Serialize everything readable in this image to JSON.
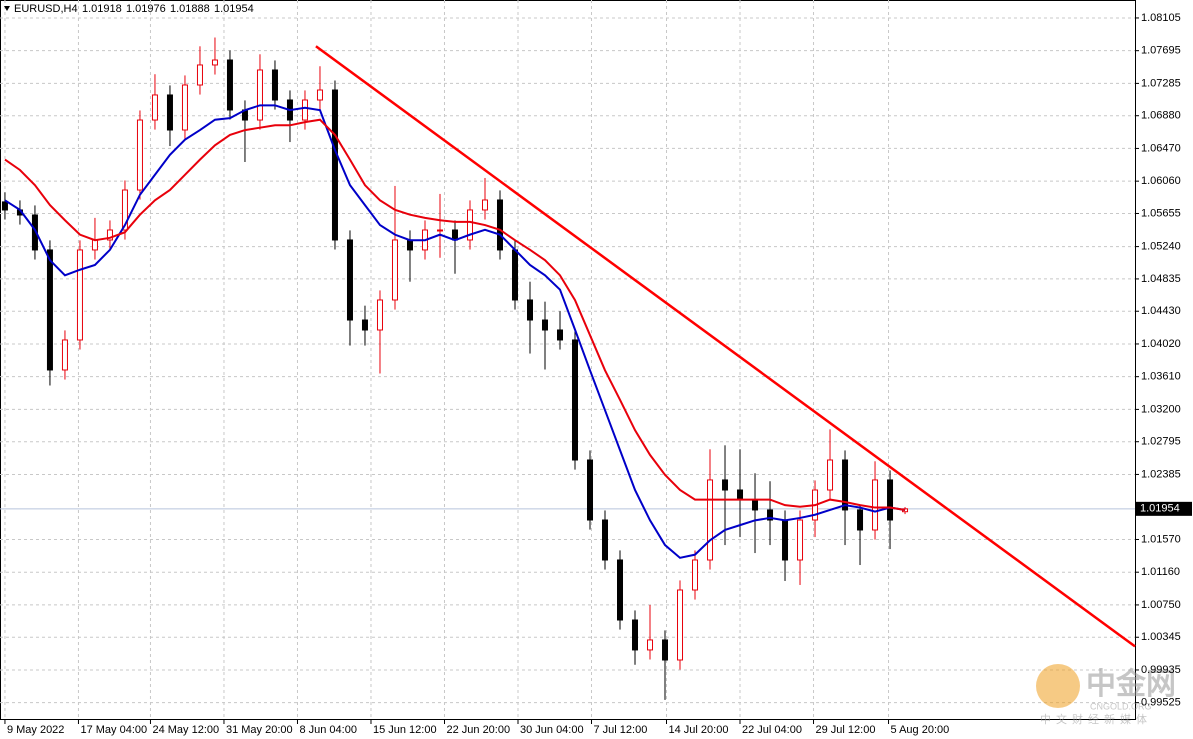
{
  "chart_data": {
    "type": "candlestick",
    "symbol": "EURUSD,H4",
    "grid": true,
    "up_color": "#e8000b",
    "down_color": "#000000",
    "watermark": {
      "logo": "中金网",
      "site": "CNGOLD.ORG",
      "slogan": "中文财经新媒体"
    },
    "x": [
      0,
      1,
      2,
      3,
      4,
      5,
      6,
      7,
      8,
      9,
      10,
      11,
      12,
      13,
      14,
      15,
      16,
      17,
      18,
      19,
      20,
      21,
      22,
      23,
      24,
      25,
      26,
      27,
      28,
      29,
      30,
      31,
      32,
      33,
      34,
      35,
      36,
      37,
      38,
      39,
      40,
      41,
      42,
      43,
      44,
      45,
      46,
      47,
      48,
      49,
      50,
      51,
      52,
      53,
      54,
      55,
      56,
      57,
      58,
      59,
      60
    ],
    "open": [
      1.058,
      1.05699,
      1.05636,
      1.05198,
      1.03694,
      1.0407,
      1.05198,
      1.05323,
      1.05448,
      1.05949,
      1.06826,
      1.0714,
      1.06701,
      1.07265,
      1.07516,
      1.07578,
      1.06952,
      1.06826,
      1.07453,
      1.07077,
      1.06826,
      1.07077,
      1.07202,
      1.05323,
      1.0432,
      1.04195,
      1.04571,
      1.05323,
      1.05198,
      1.05448,
      1.05448,
      1.05323,
      1.05699,
      1.05824,
      1.05198,
      1.04571,
      1.0432,
      1.04195,
      1.0407,
      1.02566,
      1.01814,
      1.01313,
      1.00561,
      1.00186,
      1.00311,
      1.0006,
      1.00937,
      1.01313,
      1.02316,
      1.0219,
      1.02065,
      1.0194,
      1.01814,
      1.01313,
      1.01814,
      1.0219,
      1.02566,
      1.0194,
      1.01689,
      1.02316,
      1.01918
    ],
    "high": [
      1.0592,
      1.05819,
      1.05756,
      1.05318,
      1.0419,
      1.05318,
      1.056,
      1.05568,
      1.06069,
      1.06946,
      1.074,
      1.0726,
      1.07385,
      1.0775,
      1.0786,
      1.07698,
      1.07072,
      1.0765,
      1.07573,
      1.07197,
      1.07197,
      1.075,
      1.07322,
      1.05443,
      1.045,
      1.04691,
      1.06,
      1.05443,
      1.05568,
      1.059,
      1.05568,
      1.05819,
      1.061,
      1.05944,
      1.05318,
      1.048,
      1.0455,
      1.0443,
      1.0419,
      1.02686,
      1.01934,
      1.01433,
      1.00681,
      1.0075,
      1.00431,
      1.01057,
      1.01433,
      1.027,
      1.0275,
      1.027,
      1.024,
      1.023,
      1.01934,
      1.01934,
      1.0231,
      1.0295,
      1.02686,
      1.02,
      1.0255,
      1.02436,
      1.01976
    ],
    "low": [
      1.05579,
      1.05516,
      1.05078,
      1.035,
      1.03574,
      1.0395,
      1.05078,
      1.05203,
      1.05328,
      1.05829,
      1.06706,
      1.065,
      1.06581,
      1.07145,
      1.07396,
      1.06832,
      1.063,
      1.06706,
      1.06957,
      1.0655,
      1.06706,
      1.06957,
      1.05203,
      1.04,
      1.04,
      1.0365,
      1.04451,
      1.048,
      1.05078,
      1.051,
      1.049,
      1.05203,
      1.05579,
      1.05078,
      1.04451,
      1.039,
      1.037,
      1.0395,
      1.02446,
      1.01694,
      1.01193,
      1.00441,
      1.0,
      1.00066,
      0.9956,
      0.9994,
      1.00817,
      1.01193,
      1.015,
      1.016,
      1.014,
      1.015,
      1.0105,
      1.01,
      1.016,
      1.0207,
      1.015,
      1.0125,
      1.01569,
      1.0145,
      1.01888
    ],
    "close": [
      1.05699,
      1.05636,
      1.05198,
      1.03694,
      1.0407,
      1.05198,
      1.05323,
      1.05448,
      1.05949,
      1.06826,
      1.0714,
      1.06701,
      1.07265,
      1.07516,
      1.07578,
      1.06952,
      1.06826,
      1.07453,
      1.07077,
      1.06826,
      1.07077,
      1.07202,
      1.05323,
      1.0432,
      1.04195,
      1.04571,
      1.05323,
      1.05198,
      1.05448,
      1.05448,
      1.05323,
      1.05699,
      1.05824,
      1.05198,
      1.04571,
      1.0432,
      1.04195,
      1.0407,
      1.02566,
      1.01814,
      1.01313,
      1.00561,
      1.00186,
      1.00311,
      1.0006,
      1.00937,
      1.01313,
      1.02316,
      1.0219,
      1.02065,
      1.0194,
      1.01814,
      1.01313,
      1.01814,
      1.0219,
      1.02566,
      1.0194,
      1.01689,
      1.02316,
      1.01814,
      1.01954
    ],
    "series": [
      {
        "color": "#0000c8",
        "values": [
          1.0582,
          1.057,
          1.0545,
          1.0507,
          1.0488,
          1.0495,
          1.0501,
          1.052,
          1.0551,
          1.0589,
          1.0614,
          1.0639,
          1.0658,
          1.067,
          1.0683,
          1.0685,
          1.0695,
          1.0701,
          1.0701,
          1.0695,
          1.0698,
          1.0695,
          1.0645,
          1.0601,
          1.0576,
          1.0551,
          1.0539,
          1.0532,
          1.0532,
          1.0539,
          1.0532,
          1.0539,
          1.0545,
          1.0539,
          1.052,
          1.0501,
          1.0488,
          1.047,
          1.042,
          1.0369,
          1.0319,
          1.0269,
          1.0219,
          1.0181,
          1.015,
          1.0134,
          1.0138,
          1.0156,
          1.0169,
          1.0175,
          1.0181,
          1.0184,
          1.0181,
          1.0184,
          1.0188,
          1.0194,
          1.02,
          1.0197,
          1.0192,
          1.0197,
          1.0194
        ]
      },
      {
        "color": "#e8000b",
        "values": [
          1.0633,
          1.062,
          1.0601,
          1.0576,
          1.0557,
          1.0539,
          1.0532,
          1.0535,
          1.0542,
          1.0564,
          1.0582,
          1.0595,
          1.0614,
          1.0633,
          1.0651,
          1.0664,
          1.067,
          1.0673,
          1.0676,
          1.0676,
          1.068,
          1.0683,
          1.0664,
          1.0633,
          1.0601,
          1.0582,
          1.057,
          1.0564,
          1.056,
          1.0557,
          1.0555,
          1.0555,
          1.0551,
          1.0545,
          1.0532,
          1.052,
          1.0507,
          1.0488,
          1.0457,
          1.0413,
          1.0369,
          1.0332,
          1.0294,
          1.0263,
          1.0238,
          1.0219,
          1.0207,
          1.0207,
          1.0207,
          1.0207,
          1.0207,
          1.0207,
          1.02,
          1.0198,
          1.02,
          1.0207,
          1.0204,
          1.02,
          1.0197,
          1.0197,
          1.0194
        ]
      }
    ],
    "trendline": {
      "color": "#ff0000",
      "x": [
        20.73,
        75.33
      ],
      "y": [
        1.0775,
        1.0023
      ]
    },
    "current_price_color": "#b8c4dc",
    "xlim": [
      -0.33,
      75.33
    ],
    "ylim": [
      0.99308,
      1.0833
    ],
    "xticks": [
      {
        "value": 0,
        "label": "9 May 2022"
      },
      {
        "value": 4.9,
        "label": "17 May 04:00"
      },
      {
        "value": 9.7,
        "label": "24 May 12:00"
      },
      {
        "value": 14.6,
        "label": "31 May 20:00"
      },
      {
        "value": 19.5,
        "label": "8 Jun 04:00"
      },
      {
        "value": 24.4,
        "label": "15 Jun 12:00"
      },
      {
        "value": 29.3,
        "label": "22 Jun 20:00"
      },
      {
        "value": 34.2,
        "label": "30 Jun 04:00"
      },
      {
        "value": 39.1,
        "label": "7 Jul 12:00"
      },
      {
        "value": 44.1,
        "label": "14 Jul 20:00"
      },
      {
        "value": 49,
        "label": "22 Jul 04:00"
      },
      {
        "value": 53.9,
        "label": "29 Jul 12:00"
      },
      {
        "value": 58.9,
        "label": "5 Aug 20:00"
      }
    ],
    "yticks": [
      1.08105,
      1.07695,
      1.07285,
      {
        "value": 1.0688,
        "label": "1.06880"
      },
      {
        "value": 1.0647,
        "label": "1.06470"
      },
      {
        "value": 1.0606,
        "label": "1.06060"
      },
      1.05655,
      {
        "value": 1.0524,
        "label": "1.05240"
      },
      1.04835,
      {
        "value": 1.0443,
        "label": "1.04430"
      },
      {
        "value": 1.0402,
        "label": "1.04020"
      },
      {
        "value": 1.0361,
        "label": "1.03610"
      },
      {
        "value": 1.032,
        "label": "1.03200"
      },
      1.02795,
      1.02385,
      {
        "value": 1.0157,
        "label": "1.01570"
      },
      {
        "value": 1.0116,
        "label": "1.01160"
      },
      {
        "value": 1.0075,
        "label": "1.00750"
      },
      1.00345,
      0.99935,
      0.99525
    ]
  }
}
